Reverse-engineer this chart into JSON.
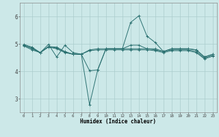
{
  "xlabel": "Humidex (Indice chaleur)",
  "bg_color": "#cce8e8",
  "grid_color": "#aacccc",
  "line_color": "#2a7070",
  "xlim": [
    -0.5,
    23.5
  ],
  "ylim": [
    2.5,
    6.5
  ],
  "yticks": [
    3,
    4,
    5,
    6
  ],
  "xtick_labels": [
    "0",
    "1",
    "2",
    "3",
    "4",
    "5",
    "6",
    "7",
    "8",
    "9",
    "10",
    "11",
    "12",
    "13",
    "14",
    "15",
    "16",
    "17",
    "18",
    "19",
    "20",
    "21",
    "22",
    "23"
  ],
  "series": [
    {
      "y": [
        4.98,
        4.88,
        4.68,
        4.98,
        4.52,
        4.95,
        4.68,
        4.62,
        4.02,
        4.05,
        4.82,
        4.82,
        4.82,
        5.78,
        6.02,
        5.28,
        5.05,
        4.72,
        4.82,
        4.82,
        4.82,
        4.78,
        4.52,
        4.62
      ]
    },
    {
      "y": [
        4.95,
        4.85,
        4.68,
        4.9,
        4.88,
        4.72,
        4.62,
        4.62,
        2.78,
        4.05,
        4.82,
        4.82,
        4.82,
        4.95,
        4.95,
        4.82,
        4.82,
        4.72,
        4.82,
        4.82,
        4.82,
        4.78,
        4.52,
        4.62
      ]
    },
    {
      "y": [
        4.95,
        4.82,
        4.68,
        4.9,
        4.85,
        4.7,
        4.62,
        4.62,
        4.78,
        4.82,
        4.82,
        4.82,
        4.82,
        4.82,
        4.82,
        4.82,
        4.78,
        4.72,
        4.78,
        4.78,
        4.78,
        4.72,
        4.48,
        4.58
      ]
    },
    {
      "y": [
        4.92,
        4.78,
        4.68,
        4.88,
        4.82,
        4.68,
        4.62,
        4.62,
        4.75,
        4.78,
        4.78,
        4.78,
        4.78,
        4.78,
        4.78,
        4.78,
        4.75,
        4.68,
        4.75,
        4.75,
        4.75,
        4.68,
        4.45,
        4.55
      ]
    }
  ]
}
